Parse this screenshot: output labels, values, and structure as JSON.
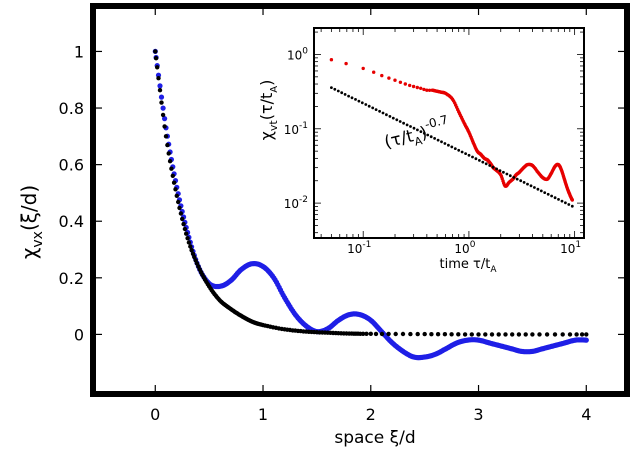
{
  "chart_data": [
    {
      "type": "scatter",
      "xlabel": "space ξ/d",
      "ylabel_main": "χ",
      "ylabel_sub": "vx",
      "ylabel_tail": "(ξ/d)",
      "xlim": [
        -0.55,
        4.35
      ],
      "ylim": [
        -0.2,
        1.15
      ],
      "xticks": [
        0,
        1,
        2,
        3,
        4
      ],
      "xtick_labels": [
        "0",
        "1",
        "2",
        "3",
        "4"
      ],
      "yticks": [
        0,
        0.2,
        0.4,
        0.6,
        0.8,
        1
      ],
      "ytick_labels": [
        "0",
        "0.2",
        "0.4",
        "0.6",
        "0.8",
        "1"
      ],
      "grid": false,
      "series": [
        {
          "color": "#1f1fe6",
          "x": [
            0,
            0.1,
            0.2,
            0.3,
            0.4,
            0.5,
            0.6,
            0.7,
            0.8,
            0.9,
            1.0,
            1.1,
            1.2,
            1.3,
            1.4,
            1.5,
            1.6,
            1.7,
            1.8,
            1.9,
            2.0,
            2.1,
            2.2,
            2.3,
            2.4,
            2.5,
            2.6,
            2.7,
            2.8,
            2.9,
            3.0,
            3.1,
            3.2,
            3.3,
            3.4,
            3.5,
            3.6,
            3.7,
            3.8,
            3.9,
            4.0
          ],
          "y": [
            1.0,
            0.73,
            0.52,
            0.36,
            0.24,
            0.18,
            0.17,
            0.19,
            0.23,
            0.25,
            0.24,
            0.2,
            0.13,
            0.07,
            0.03,
            0.01,
            0.02,
            0.05,
            0.07,
            0.07,
            0.05,
            0.01,
            -0.03,
            -0.06,
            -0.08,
            -0.08,
            -0.07,
            -0.05,
            -0.03,
            -0.02,
            -0.02,
            -0.03,
            -0.04,
            -0.05,
            -0.06,
            -0.06,
            -0.05,
            -0.04,
            -0.03,
            -0.02,
            -0.02
          ]
        },
        {
          "color": "#000000",
          "x": [
            0,
            0.1,
            0.2,
            0.3,
            0.4,
            0.5,
            0.6,
            0.7,
            0.8,
            0.9,
            1.0,
            1.2,
            1.4,
            1.6,
            1.8,
            2.0,
            2.5,
            3.0,
            3.5,
            4.0
          ],
          "y": [
            1.0,
            0.7,
            0.49,
            0.34,
            0.24,
            0.17,
            0.12,
            0.09,
            0.065,
            0.045,
            0.033,
            0.018,
            0.01,
            0.006,
            0.003,
            0.002,
            0.001,
            0.0,
            0.0,
            0.0
          ]
        }
      ]
    },
    {
      "type": "scatter",
      "xlabel": "time τ/t",
      "xlabel_sub": "A",
      "ylabel_main": "χ",
      "ylabel_sub": "vt",
      "ylabel_tail": "(τ/t",
      "ylabel_sub2": "A",
      "ylabel_close": ")",
      "xscale": "log",
      "yscale": "log",
      "xlim": [
        0.035,
        12
      ],
      "ylim": [
        0.0035,
        2.2
      ],
      "xtick_labels": [
        {
          "value": 0.1,
          "base": "10",
          "exp": "-1"
        },
        {
          "value": 1,
          "base": "10",
          "exp": "0"
        },
        {
          "value": 10,
          "base": "10",
          "exp": "1"
        }
      ],
      "ytick_labels": [
        {
          "value": 1,
          "base": "10",
          "exp": "0"
        },
        {
          "value": 0.1,
          "base": "10",
          "exp": "-1"
        },
        {
          "value": 0.01,
          "base": "10",
          "exp": "-2"
        }
      ],
      "annotation": {
        "text": "(τ/t",
        "sub": "A",
        "close": ")",
        "exp": "-0.7"
      },
      "series": [
        {
          "color": "#e60000",
          "x": [
            0.05,
            0.1,
            0.15,
            0.2,
            0.25,
            0.3,
            0.35,
            0.4,
            0.45,
            0.5,
            0.55,
            0.6,
            0.7,
            0.8,
            0.9,
            1.0,
            1.1,
            1.2,
            1.3,
            1.4,
            1.5,
            1.6,
            1.7,
            1.8,
            2.0,
            2.2,
            2.4,
            2.6,
            2.8,
            3.0,
            3.3,
            3.6,
            4.0,
            4.5,
            5.0,
            5.5,
            6.0,
            6.5,
            7.0,
            7.5,
            8.0,
            8.5,
            9.0,
            9.5
          ],
          "y": [
            0.85,
            0.65,
            0.52,
            0.45,
            0.4,
            0.37,
            0.35,
            0.33,
            0.33,
            0.32,
            0.31,
            0.3,
            0.25,
            0.17,
            0.12,
            0.09,
            0.065,
            0.05,
            0.045,
            0.04,
            0.038,
            0.034,
            0.03,
            0.028,
            0.024,
            0.017,
            0.019,
            0.021,
            0.024,
            0.026,
            0.03,
            0.033,
            0.032,
            0.026,
            0.022,
            0.021,
            0.025,
            0.031,
            0.033,
            0.028,
            0.021,
            0.016,
            0.013,
            0.011
          ]
        },
        {
          "color": "#000000",
          "type": "power-law",
          "exponent": -0.7,
          "x_range": [
            0.05,
            9.5
          ],
          "y_at_x1": 0.044
        }
      ]
    }
  ]
}
